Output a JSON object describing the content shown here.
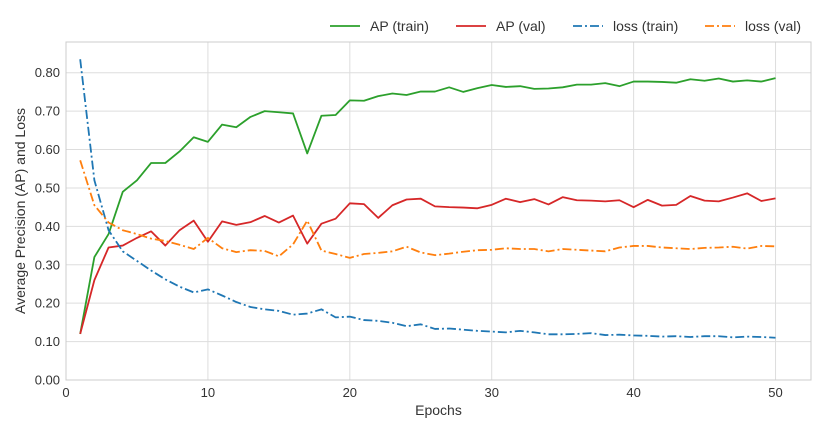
{
  "chart_data": {
    "type": "line",
    "xlabel": "Epochs",
    "ylabel": "Average Precision (AP) and Loss",
    "xlim": [
      0,
      52.5
    ],
    "ylim": [
      0,
      0.88
    ],
    "xticks": [
      "0",
      "10",
      "20",
      "30",
      "40",
      "50"
    ],
    "xtick_values": [
      0,
      10,
      20,
      30,
      40,
      50
    ],
    "yticks": [
      "0.00",
      "0.10",
      "0.20",
      "0.30",
      "0.40",
      "0.50",
      "0.60",
      "0.70",
      "0.80"
    ],
    "ytick_values": [
      0,
      0.1,
      0.2,
      0.3,
      0.4,
      0.5,
      0.6,
      0.7,
      0.8
    ],
    "grid": true,
    "legend_position": "top-right",
    "x": [
      1,
      2,
      3,
      4,
      5,
      6,
      7,
      8,
      9,
      10,
      11,
      12,
      13,
      14,
      15,
      16,
      17,
      18,
      19,
      20,
      21,
      22,
      23,
      24,
      25,
      26,
      27,
      28,
      29,
      30,
      31,
      32,
      33,
      34,
      35,
      36,
      37,
      38,
      39,
      40,
      41,
      42,
      43,
      44,
      45,
      46,
      47,
      48,
      49,
      50
    ],
    "series": [
      {
        "name": "AP (train)",
        "color": "#2ca02c",
        "style": "solid",
        "values": [
          0.12,
          0.32,
          0.38,
          0.49,
          0.52,
          0.565,
          0.565,
          0.595,
          0.632,
          0.62,
          0.665,
          0.658,
          0.685,
          0.7,
          0.697,
          0.694,
          0.59,
          0.688,
          0.69,
          0.728,
          0.727,
          0.739,
          0.746,
          0.742,
          0.751,
          0.751,
          0.762,
          0.75,
          0.76,
          0.768,
          0.763,
          0.765,
          0.758,
          0.759,
          0.762,
          0.769,
          0.769,
          0.773,
          0.765,
          0.777,
          0.777,
          0.776,
          0.774,
          0.783,
          0.779,
          0.785,
          0.777,
          0.78,
          0.777,
          0.786
        ]
      },
      {
        "name": "AP (val)",
        "color": "#d62728",
        "style": "solid",
        "values": [
          0.12,
          0.26,
          0.345,
          0.35,
          0.37,
          0.387,
          0.35,
          0.39,
          0.415,
          0.36,
          0.413,
          0.404,
          0.411,
          0.427,
          0.41,
          0.428,
          0.355,
          0.407,
          0.42,
          0.46,
          0.458,
          0.422,
          0.455,
          0.47,
          0.472,
          0.452,
          0.45,
          0.449,
          0.447,
          0.456,
          0.472,
          0.463,
          0.471,
          0.457,
          0.476,
          0.468,
          0.467,
          0.465,
          0.468,
          0.45,
          0.469,
          0.454,
          0.456,
          0.479,
          0.467,
          0.465,
          0.475,
          0.486,
          0.466,
          0.473
        ]
      },
      {
        "name": "loss (train)",
        "color": "#1f77b4",
        "style": "dashdot",
        "values": [
          0.835,
          0.52,
          0.39,
          0.335,
          0.31,
          0.285,
          0.262,
          0.243,
          0.228,
          0.236,
          0.22,
          0.203,
          0.19,
          0.184,
          0.18,
          0.17,
          0.173,
          0.184,
          0.163,
          0.165,
          0.156,
          0.154,
          0.149,
          0.14,
          0.145,
          0.133,
          0.134,
          0.131,
          0.128,
          0.126,
          0.124,
          0.128,
          0.124,
          0.119,
          0.119,
          0.12,
          0.122,
          0.117,
          0.118,
          0.116,
          0.115,
          0.113,
          0.114,
          0.112,
          0.114,
          0.114,
          0.111,
          0.113,
          0.112,
          0.11
        ]
      },
      {
        "name": "loss (val)",
        "color": "#ff7f0e",
        "style": "dashdot",
        "values": [
          0.572,
          0.455,
          0.41,
          0.39,
          0.38,
          0.368,
          0.362,
          0.352,
          0.341,
          0.37,
          0.343,
          0.333,
          0.338,
          0.336,
          0.322,
          0.353,
          0.415,
          0.337,
          0.328,
          0.318,
          0.328,
          0.331,
          0.335,
          0.347,
          0.332,
          0.325,
          0.329,
          0.334,
          0.338,
          0.339,
          0.343,
          0.341,
          0.341,
          0.335,
          0.341,
          0.339,
          0.337,
          0.335,
          0.345,
          0.349,
          0.349,
          0.345,
          0.343,
          0.341,
          0.344,
          0.345,
          0.347,
          0.342,
          0.349,
          0.348
        ]
      }
    ]
  }
}
